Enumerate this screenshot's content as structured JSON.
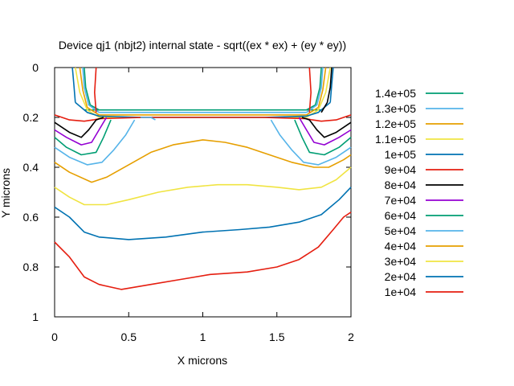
{
  "chart_data": {
    "type": "line",
    "title": "Device qj1 (nbjt2) internal state - sqrt((ex * ex) + (ey * ey))",
    "xlabel": "X microns",
    "ylabel": "Y microns",
    "xlim": [
      0,
      2
    ],
    "ylim": [
      1,
      0
    ],
    "y_axis_inverted": true,
    "x_ticks": [
      "0",
      "0.5",
      "1",
      "1.5",
      "2"
    ],
    "y_ticks": [
      "0",
      "0.2",
      "0.4",
      "0.6",
      "0.8",
      "1"
    ],
    "legend_position": "right",
    "grid": false,
    "series": [
      {
        "name": "1.4e+05",
        "color": "#009e73",
        "segments": [
          [
            [
              0.2,
              0.17
            ],
            [
              0.3,
              0.17
            ],
            [
              0.6,
              0.17
            ],
            [
              1.0,
              0.17
            ],
            [
              1.4,
              0.17
            ],
            [
              1.7,
              0.17
            ],
            [
              1.8,
              0.17
            ]
          ],
          [
            [
              0.2,
              0.0
            ],
            [
              0.21,
              0.08
            ],
            [
              0.24,
              0.15
            ],
            [
              0.3,
              0.17
            ]
          ],
          [
            [
              1.7,
              0.17
            ],
            [
              1.76,
              0.15
            ],
            [
              1.79,
              0.08
            ],
            [
              1.8,
              0.0
            ]
          ]
        ]
      },
      {
        "name": "1.3e+05",
        "color": "#56b4e9",
        "segments": [
          [
            [
              0.3,
              0.18
            ],
            [
              0.6,
              0.18
            ],
            [
              1.0,
              0.18
            ],
            [
              1.4,
              0.18
            ],
            [
              1.7,
              0.18
            ]
          ],
          [
            [
              0.19,
              0.0
            ],
            [
              0.2,
              0.08
            ],
            [
              0.23,
              0.15
            ],
            [
              0.3,
              0.18
            ]
          ],
          [
            [
              1.7,
              0.18
            ],
            [
              1.77,
              0.15
            ],
            [
              1.8,
              0.08
            ],
            [
              1.81,
              0.0
            ]
          ]
        ]
      },
      {
        "name": "1.2e+05",
        "color": "#e69f00",
        "segments": [
          [
            [
              0.3,
              0.19
            ],
            [
              0.6,
              0.19
            ],
            [
              1.0,
              0.19
            ],
            [
              1.4,
              0.19
            ],
            [
              1.7,
              0.19
            ]
          ],
          [
            [
              0.17,
              0.0
            ],
            [
              0.19,
              0.09
            ],
            [
              0.22,
              0.16
            ],
            [
              0.3,
              0.19
            ]
          ],
          [
            [
              1.7,
              0.19
            ],
            [
              1.78,
              0.16
            ],
            [
              1.81,
              0.09
            ],
            [
              1.83,
              0.0
            ]
          ]
        ]
      },
      {
        "name": "1.1e+05",
        "color": "#f0e442",
        "segments": [
          [
            [
              0.3,
              0.2
            ],
            [
              0.6,
              0.2
            ],
            [
              1.0,
              0.2
            ],
            [
              1.4,
              0.2
            ],
            [
              1.7,
              0.2
            ]
          ],
          [
            [
              0.14,
              0.0
            ],
            [
              0.17,
              0.1
            ],
            [
              0.22,
              0.17
            ],
            [
              0.3,
              0.2
            ]
          ],
          [
            [
              1.7,
              0.2
            ],
            [
              1.78,
              0.17
            ],
            [
              1.83,
              0.1
            ],
            [
              1.86,
              0.0
            ]
          ]
        ]
      },
      {
        "name": "1e+05",
        "color": "#0072b2",
        "segments": [
          [
            [
              0.14,
              0.14
            ],
            [
              0.22,
              0.18
            ],
            [
              0.3,
              0.195
            ],
            [
              0.6,
              0.2
            ],
            [
              1.0,
              0.2
            ],
            [
              1.4,
              0.2
            ],
            [
              1.7,
              0.195
            ],
            [
              1.78,
              0.18
            ],
            [
              1.86,
              0.14
            ]
          ],
          [
            [
              0.12,
              0.0
            ],
            [
              0.13,
              0.07
            ],
            [
              0.14,
              0.14
            ]
          ],
          [
            [
              1.86,
              0.14
            ],
            [
              1.87,
              0.07
            ],
            [
              1.88,
              0.0
            ]
          ]
        ]
      },
      {
        "name": "9e+04",
        "color": "#e51e10",
        "segments": [
          [
            [
              0.0,
              0.19
            ],
            [
              0.1,
              0.21
            ],
            [
              0.2,
              0.215
            ],
            [
              0.26,
              0.21
            ],
            [
              0.3,
              0.205
            ],
            [
              0.6,
              0.2
            ],
            [
              1.0,
              0.2
            ],
            [
              1.4,
              0.2
            ],
            [
              1.7,
              0.205
            ],
            [
              1.74,
              0.21
            ],
            [
              1.8,
              0.215
            ],
            [
              1.9,
              0.21
            ],
            [
              2.0,
              0.19
            ]
          ],
          [
            [
              0.28,
              0.0
            ],
            [
              0.27,
              0.1
            ],
            [
              0.28,
              0.18
            ]
          ],
          [
            [
              1.72,
              0.0
            ],
            [
              1.73,
              0.1
            ],
            [
              1.72,
              0.18
            ]
          ]
        ]
      },
      {
        "name": "8e+04",
        "color": "#000000",
        "segments": [
          [
            [
              0.0,
              0.22
            ],
            [
              0.1,
              0.26
            ],
            [
              0.18,
              0.28
            ],
            [
              0.23,
              0.25
            ],
            [
              0.28,
              0.21
            ],
            [
              0.33,
              0.2
            ]
          ],
          [
            [
              1.67,
              0.2
            ],
            [
              1.72,
              0.21
            ],
            [
              1.77,
              0.25
            ],
            [
              1.82,
              0.28
            ],
            [
              1.9,
              0.26
            ],
            [
              2.0,
              0.22
            ]
          ],
          [
            [
              1.87,
              0.0
            ],
            [
              1.86,
              0.08
            ],
            [
              1.84,
              0.14
            ],
            [
              1.8,
              0.18
            ]
          ]
        ]
      },
      {
        "name": "7e+04",
        "color": "#9400d3",
        "segments": [
          [
            [
              0.0,
              0.25
            ],
            [
              0.08,
              0.28
            ],
            [
              0.18,
              0.31
            ],
            [
              0.25,
              0.3
            ],
            [
              0.3,
              0.25
            ],
            [
              0.35,
              0.2
            ]
          ],
          [
            [
              1.65,
              0.2
            ],
            [
              1.7,
              0.25
            ],
            [
              1.75,
              0.3
            ],
            [
              1.82,
              0.31
            ],
            [
              1.92,
              0.28
            ],
            [
              2.0,
              0.25
            ]
          ]
        ]
      },
      {
        "name": "6e+04",
        "color": "#009e73",
        "segments": [
          [
            [
              0.0,
              0.28
            ],
            [
              0.08,
              0.32
            ],
            [
              0.18,
              0.35
            ],
            [
              0.28,
              0.34
            ],
            [
              0.33,
              0.28
            ],
            [
              0.38,
              0.21
            ]
          ],
          [
            [
              1.62,
              0.21
            ],
            [
              1.67,
              0.28
            ],
            [
              1.72,
              0.34
            ],
            [
              1.82,
              0.35
            ],
            [
              1.92,
              0.32
            ],
            [
              2.0,
              0.28
            ]
          ]
        ]
      },
      {
        "name": "5e+04",
        "color": "#56b4e9",
        "segments": [
          [
            [
              0.0,
              0.32
            ],
            [
              0.1,
              0.36
            ],
            [
              0.22,
              0.39
            ],
            [
              0.32,
              0.38
            ],
            [
              0.4,
              0.33
            ],
            [
              0.48,
              0.27
            ],
            [
              0.54,
              0.21
            ]
          ],
          [
            [
              0.58,
              0.2
            ],
            [
              0.65,
              0.2
            ],
            [
              0.68,
              0.21
            ]
          ],
          [
            [
              1.46,
              0.21
            ],
            [
              1.52,
              0.27
            ],
            [
              1.6,
              0.33
            ],
            [
              1.68,
              0.38
            ],
            [
              1.78,
              0.39
            ],
            [
              1.9,
              0.36
            ],
            [
              2.0,
              0.32
            ]
          ]
        ]
      },
      {
        "name": "4e+04",
        "color": "#e69f00",
        "segments": [
          [
            [
              0.0,
              0.38
            ],
            [
              0.1,
              0.42
            ],
            [
              0.25,
              0.46
            ],
            [
              0.35,
              0.44
            ],
            [
              0.5,
              0.39
            ],
            [
              0.65,
              0.34
            ],
            [
              0.8,
              0.31
            ],
            [
              1.0,
              0.29
            ],
            [
              1.15,
              0.3
            ],
            [
              1.3,
              0.32
            ],
            [
              1.45,
              0.35
            ],
            [
              1.6,
              0.38
            ],
            [
              1.75,
              0.4
            ],
            [
              1.85,
              0.4
            ],
            [
              1.95,
              0.37
            ],
            [
              2.0,
              0.35
            ]
          ]
        ]
      },
      {
        "name": "3e+04",
        "color": "#f0e442",
        "segments": [
          [
            [
              0.0,
              0.48
            ],
            [
              0.1,
              0.52
            ],
            [
              0.2,
              0.55
            ],
            [
              0.35,
              0.55
            ],
            [
              0.5,
              0.53
            ],
            [
              0.7,
              0.5
            ],
            [
              0.9,
              0.48
            ],
            [
              1.1,
              0.47
            ],
            [
              1.3,
              0.47
            ],
            [
              1.5,
              0.48
            ],
            [
              1.65,
              0.49
            ],
            [
              1.8,
              0.48
            ],
            [
              1.9,
              0.45
            ],
            [
              2.0,
              0.4
            ]
          ]
        ]
      },
      {
        "name": "2e+04",
        "color": "#0072b2",
        "segments": [
          [
            [
              0.0,
              0.56
            ],
            [
              0.1,
              0.6
            ],
            [
              0.2,
              0.66
            ],
            [
              0.3,
              0.68
            ],
            [
              0.5,
              0.69
            ],
            [
              0.75,
              0.68
            ],
            [
              1.0,
              0.66
            ],
            [
              1.25,
              0.65
            ],
            [
              1.45,
              0.64
            ],
            [
              1.65,
              0.62
            ],
            [
              1.8,
              0.59
            ],
            [
              1.92,
              0.53
            ],
            [
              2.0,
              0.48
            ]
          ]
        ]
      },
      {
        "name": "1e+04",
        "color": "#e51e10",
        "segments": [
          [
            [
              0.0,
              0.7
            ],
            [
              0.1,
              0.76
            ],
            [
              0.2,
              0.84
            ],
            [
              0.3,
              0.87
            ],
            [
              0.45,
              0.89
            ],
            [
              0.65,
              0.87
            ],
            [
              0.85,
              0.85
            ],
            [
              1.05,
              0.83
            ],
            [
              1.3,
              0.82
            ],
            [
              1.5,
              0.8
            ],
            [
              1.65,
              0.77
            ],
            [
              1.78,
              0.72
            ],
            [
              1.88,
              0.65
            ],
            [
              1.95,
              0.6
            ],
            [
              2.0,
              0.58
            ]
          ]
        ]
      }
    ]
  }
}
